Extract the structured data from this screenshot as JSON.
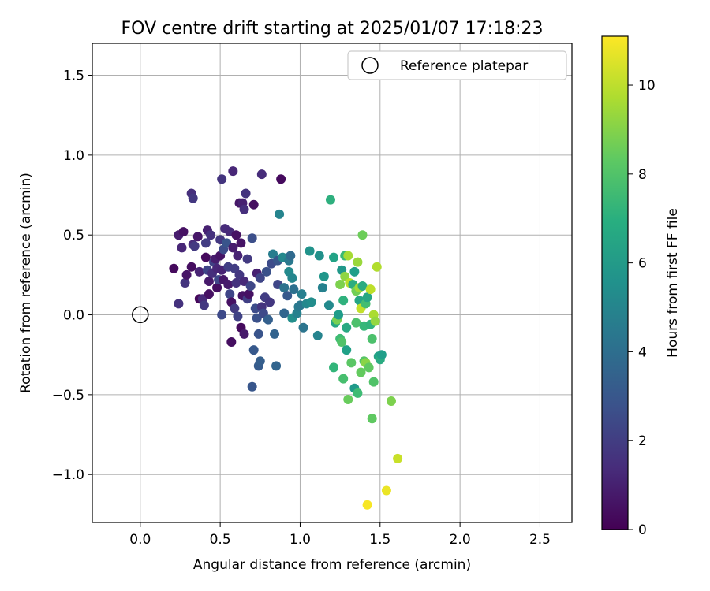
{
  "chart_data": {
    "type": "scatter",
    "title": "FOV centre drift starting at 2025/01/07 17:18:23",
    "xlabel": "Angular distance from reference (arcmin)",
    "ylabel": "Rotation from reference (arcmin)",
    "xlim": [
      -0.3,
      2.7
    ],
    "ylim": [
      -1.3,
      1.7
    ],
    "xticks": [
      0.0,
      0.5,
      1.0,
      1.5,
      2.0,
      2.5
    ],
    "xtick_labels": [
      "0.0",
      "0.5",
      "1.0",
      "1.5",
      "2.0",
      "2.5"
    ],
    "yticks": [
      -1.0,
      -0.5,
      0.0,
      0.5,
      1.0,
      1.5
    ],
    "ytick_labels": [
      "−1.0",
      "−0.5",
      "0.0",
      "0.5",
      "1.0",
      "1.5"
    ],
    "grid": true,
    "legend": {
      "location": "top-right",
      "entries": [
        "Reference platepar"
      ]
    },
    "reference_point": {
      "x": 0.0,
      "y": 0.0
    },
    "colorbar": {
      "label": "Hours from first FF file",
      "colormap": "viridis",
      "range": [
        0,
        11.1
      ],
      "ticks": [
        0,
        2,
        4,
        6,
        8,
        10
      ],
      "tick_labels": [
        "0",
        "2",
        "4",
        "6",
        "8",
        "10"
      ]
    },
    "points": [
      {
        "x": 0.21,
        "y": 0.29,
        "h": 0.3
      },
      {
        "x": 0.24,
        "y": 0.5,
        "h": 0.9
      },
      {
        "x": 0.24,
        "y": 0.07,
        "h": 1.6
      },
      {
        "x": 0.27,
        "y": 0.52,
        "h": 0.5
      },
      {
        "x": 0.26,
        "y": 0.42,
        "h": 1.2
      },
      {
        "x": 0.28,
        "y": 0.2,
        "h": 1.7
      },
      {
        "x": 0.29,
        "y": 0.25,
        "h": 0.6
      },
      {
        "x": 0.32,
        "y": 0.76,
        "h": 1.5
      },
      {
        "x": 0.33,
        "y": 0.73,
        "h": 1.8
      },
      {
        "x": 0.32,
        "y": 0.3,
        "h": 0.4
      },
      {
        "x": 0.33,
        "y": 0.44,
        "h": 1.4
      },
      {
        "x": 0.34,
        "y": 0.43,
        "h": 1.9
      },
      {
        "x": 0.36,
        "y": 0.49,
        "h": 0.7
      },
      {
        "x": 0.37,
        "y": 0.27,
        "h": 1.1
      },
      {
        "x": 0.37,
        "y": 0.1,
        "h": 0.2
      },
      {
        "x": 0.39,
        "y": 0.1,
        "h": 1.3
      },
      {
        "x": 0.4,
        "y": 0.06,
        "h": 1.8
      },
      {
        "x": 0.41,
        "y": 0.45,
        "h": 2.0
      },
      {
        "x": 0.41,
        "y": 0.36,
        "h": 0.3
      },
      {
        "x": 0.42,
        "y": 0.53,
        "h": 1.0
      },
      {
        "x": 0.42,
        "y": 0.28,
        "h": 2.3
      },
      {
        "x": 0.43,
        "y": 0.21,
        "h": 0.8
      },
      {
        "x": 0.43,
        "y": 0.13,
        "h": 0.5
      },
      {
        "x": 0.44,
        "y": 0.5,
        "h": 1.6
      },
      {
        "x": 0.45,
        "y": 0.26,
        "h": 1.5
      },
      {
        "x": 0.46,
        "y": 0.33,
        "h": 2.2
      },
      {
        "x": 0.47,
        "y": 0.35,
        "h": 0.9
      },
      {
        "x": 0.48,
        "y": 0.29,
        "h": 1.2
      },
      {
        "x": 0.48,
        "y": 0.17,
        "h": 0.4
      },
      {
        "x": 0.49,
        "y": 0.22,
        "h": 2.4
      },
      {
        "x": 0.5,
        "y": 0.47,
        "h": 1.8
      },
      {
        "x": 0.5,
        "y": 0.37,
        "h": 0.6
      },
      {
        "x": 0.51,
        "y": 0.85,
        "h": 1.7
      },
      {
        "x": 0.51,
        "y": 0.28,
        "h": 1.1
      },
      {
        "x": 0.51,
        "y": 0.0,
        "h": 2.5
      },
      {
        "x": 0.52,
        "y": 0.41,
        "h": 2.6
      },
      {
        "x": 0.52,
        "y": 0.22,
        "h": 0.7
      },
      {
        "x": 0.53,
        "y": 0.54,
        "h": 1.4
      },
      {
        "x": 0.54,
        "y": 0.45,
        "h": 2.9
      },
      {
        "x": 0.55,
        "y": 0.3,
        "h": 2.1
      },
      {
        "x": 0.55,
        "y": 0.19,
        "h": 0.8
      },
      {
        "x": 0.56,
        "y": 0.52,
        "h": 1.3
      },
      {
        "x": 0.56,
        "y": 0.13,
        "h": 2.3
      },
      {
        "x": 0.57,
        "y": 0.08,
        "h": 0.5
      },
      {
        "x": 0.57,
        "y": -0.17,
        "h": 0.4
      },
      {
        "x": 0.58,
        "y": 0.9,
        "h": 1.2
      },
      {
        "x": 0.58,
        "y": 0.42,
        "h": 0.9
      },
      {
        "x": 0.59,
        "y": 0.29,
        "h": 2.0
      },
      {
        "x": 0.59,
        "y": 0.04,
        "h": 1.9
      },
      {
        "x": 0.6,
        "y": 0.5,
        "h": 0.5
      },
      {
        "x": 0.6,
        "y": 0.2,
        "h": 1.6
      },
      {
        "x": 0.61,
        "y": 0.37,
        "h": 1.1
      },
      {
        "x": 0.61,
        "y": -0.01,
        "h": 2.2
      },
      {
        "x": 0.62,
        "y": 0.25,
        "h": 1.8
      },
      {
        "x": 0.62,
        "y": 0.7,
        "h": 0.7
      },
      {
        "x": 0.63,
        "y": 0.45,
        "h": 0.6
      },
      {
        "x": 0.63,
        "y": -0.08,
        "h": 0.3
      },
      {
        "x": 0.64,
        "y": 0.7,
        "h": 1.0
      },
      {
        "x": 0.64,
        "y": 0.12,
        "h": 0.6
      },
      {
        "x": 0.65,
        "y": 0.66,
        "h": 1.5
      },
      {
        "x": 0.65,
        "y": 0.21,
        "h": 1.3
      },
      {
        "x": 0.65,
        "y": -0.12,
        "h": 0.8
      },
      {
        "x": 0.66,
        "y": 0.76,
        "h": 1.7
      },
      {
        "x": 0.67,
        "y": 0.35,
        "h": 1.9
      },
      {
        "x": 0.67,
        "y": 0.1,
        "h": 2.1
      },
      {
        "x": 0.68,
        "y": 0.13,
        "h": 0.5
      },
      {
        "x": 0.69,
        "y": 0.18,
        "h": 2.4
      },
      {
        "x": 0.7,
        "y": 0.48,
        "h": 2.7
      },
      {
        "x": 0.7,
        "y": -0.45,
        "h": 3.0
      },
      {
        "x": 0.71,
        "y": 0.69,
        "h": 0.4
      },
      {
        "x": 0.71,
        "y": -0.22,
        "h": 3.1
      },
      {
        "x": 0.72,
        "y": 0.04,
        "h": 2.6
      },
      {
        "x": 0.73,
        "y": 0.26,
        "h": 1.0
      },
      {
        "x": 0.73,
        "y": -0.02,
        "h": 2.8
      },
      {
        "x": 0.74,
        "y": -0.32,
        "h": 3.2
      },
      {
        "x": 0.74,
        "y": -0.12,
        "h": 2.9
      },
      {
        "x": 0.75,
        "y": -0.29,
        "h": 3.3
      },
      {
        "x": 0.75,
        "y": 0.23,
        "h": 2.3
      },
      {
        "x": 0.76,
        "y": 0.88,
        "h": 1.4
      },
      {
        "x": 0.76,
        "y": 0.05,
        "h": 1.7
      },
      {
        "x": 0.77,
        "y": 0.01,
        "h": 2.5
      },
      {
        "x": 0.78,
        "y": 0.11,
        "h": 2.0
      },
      {
        "x": 0.79,
        "y": 0.27,
        "h": 2.8
      },
      {
        "x": 0.8,
        "y": -0.03,
        "h": 3.4
      },
      {
        "x": 0.81,
        "y": 0.08,
        "h": 1.8
      },
      {
        "x": 0.82,
        "y": 0.32,
        "h": 2.6
      },
      {
        "x": 0.83,
        "y": 0.38,
        "h": 4.7
      },
      {
        "x": 0.84,
        "y": -0.12,
        "h": 3.5
      },
      {
        "x": 0.85,
        "y": -0.32,
        "h": 3.6
      },
      {
        "x": 0.86,
        "y": 0.19,
        "h": 2.4
      },
      {
        "x": 0.86,
        "y": 0.34,
        "h": 3.0
      },
      {
        "x": 0.87,
        "y": 0.63,
        "h": 5.0
      },
      {
        "x": 0.88,
        "y": 0.85,
        "h": 0.3
      },
      {
        "x": 0.89,
        "y": 0.36,
        "h": 5.2
      },
      {
        "x": 0.9,
        "y": 0.17,
        "h": 4.2
      },
      {
        "x": 0.9,
        "y": 0.01,
        "h": 3.6
      },
      {
        "x": 0.92,
        "y": 0.12,
        "h": 3.1
      },
      {
        "x": 0.93,
        "y": 0.34,
        "h": 4.5
      },
      {
        "x": 0.93,
        "y": 0.27,
        "h": 5.3
      },
      {
        "x": 0.94,
        "y": 0.37,
        "h": 3.8
      },
      {
        "x": 0.95,
        "y": 0.23,
        "h": 5.1
      },
      {
        "x": 0.95,
        "y": -0.02,
        "h": 5.5
      },
      {
        "x": 0.96,
        "y": 0.16,
        "h": 4.1
      },
      {
        "x": 0.98,
        "y": 0.01,
        "h": 4.9
      },
      {
        "x": 0.99,
        "y": 0.05,
        "h": 4.6
      },
      {
        "x": 1.0,
        "y": 0.06,
        "h": 4.4
      },
      {
        "x": 1.01,
        "y": 0.13,
        "h": 4.8
      },
      {
        "x": 1.02,
        "y": -0.08,
        "h": 4.3
      },
      {
        "x": 1.04,
        "y": 0.07,
        "h": 5.2
      },
      {
        "x": 1.06,
        "y": 0.4,
        "h": 5.7
      },
      {
        "x": 1.07,
        "y": 0.08,
        "h": 5.4
      },
      {
        "x": 1.11,
        "y": -0.13,
        "h": 5.0
      },
      {
        "x": 1.12,
        "y": 0.37,
        "h": 5.6
      },
      {
        "x": 1.14,
        "y": 0.17,
        "h": 4.9
      },
      {
        "x": 1.15,
        "y": 0.24,
        "h": 5.8
      },
      {
        "x": 1.18,
        "y": 0.06,
        "h": 5.3
      },
      {
        "x": 1.19,
        "y": 0.72,
        "h": 7.0
      },
      {
        "x": 1.21,
        "y": 0.36,
        "h": 6.4
      },
      {
        "x": 1.21,
        "y": -0.33,
        "h": 7.3
      },
      {
        "x": 1.22,
        "y": -0.05,
        "h": 6.6
      },
      {
        "x": 1.23,
        "y": -0.03,
        "h": 8.8
      },
      {
        "x": 1.24,
        "y": 0.0,
        "h": 6.1
      },
      {
        "x": 1.25,
        "y": -0.15,
        "h": 7.6
      },
      {
        "x": 1.25,
        "y": 0.19,
        "h": 8.9
      },
      {
        "x": 1.26,
        "y": 0.28,
        "h": 5.9
      },
      {
        "x": 1.26,
        "y": -0.17,
        "h": 8.0
      },
      {
        "x": 1.27,
        "y": 0.09,
        "h": 7.1
      },
      {
        "x": 1.27,
        "y": -0.4,
        "h": 7.8
      },
      {
        "x": 1.28,
        "y": 0.24,
        "h": 9.2
      },
      {
        "x": 1.28,
        "y": 0.37,
        "h": 7.5
      },
      {
        "x": 1.29,
        "y": -0.08,
        "h": 6.7
      },
      {
        "x": 1.29,
        "y": -0.22,
        "h": 6.3
      },
      {
        "x": 1.3,
        "y": 0.37,
        "h": 9.6
      },
      {
        "x": 1.3,
        "y": -0.53,
        "h": 8.5
      },
      {
        "x": 1.31,
        "y": 0.2,
        "h": 9.9
      },
      {
        "x": 1.32,
        "y": -0.3,
        "h": 8.2
      },
      {
        "x": 1.33,
        "y": 0.19,
        "h": 6.9
      },
      {
        "x": 1.34,
        "y": -0.46,
        "h": 6.0
      },
      {
        "x": 1.34,
        "y": 0.27,
        "h": 6.2
      },
      {
        "x": 1.35,
        "y": 0.15,
        "h": 8.7
      },
      {
        "x": 1.35,
        "y": -0.05,
        "h": 7.9
      },
      {
        "x": 1.36,
        "y": 0.33,
        "h": 9.4
      },
      {
        "x": 1.36,
        "y": -0.49,
        "h": 7.6
      },
      {
        "x": 1.37,
        "y": 0.09,
        "h": 6.5
      },
      {
        "x": 1.37,
        "y": 0.17,
        "h": 9.5
      },
      {
        "x": 1.38,
        "y": 0.04,
        "h": 10.1
      },
      {
        "x": 1.38,
        "y": -0.36,
        "h": 8.4
      },
      {
        "x": 1.39,
        "y": 0.5,
        "h": 8.6
      },
      {
        "x": 1.39,
        "y": 0.18,
        "h": 6.8
      },
      {
        "x": 1.4,
        "y": -0.07,
        "h": 7.4
      },
      {
        "x": 1.4,
        "y": -0.29,
        "h": 8.1
      },
      {
        "x": 1.41,
        "y": 0.07,
        "h": 7.7
      },
      {
        "x": 1.41,
        "y": -0.3,
        "h": 9.1
      },
      {
        "x": 1.42,
        "y": -1.19,
        "h": 11.0
      },
      {
        "x": 1.42,
        "y": 0.11,
        "h": 6.6
      },
      {
        "x": 1.43,
        "y": -0.33,
        "h": 8.3
      },
      {
        "x": 1.44,
        "y": -0.06,
        "h": 7.2
      },
      {
        "x": 1.44,
        "y": 0.16,
        "h": 10.0
      },
      {
        "x": 1.45,
        "y": -0.15,
        "h": 7.9
      },
      {
        "x": 1.45,
        "y": -0.65,
        "h": 8.3
      },
      {
        "x": 1.46,
        "y": -0.42,
        "h": 8.0
      },
      {
        "x": 1.46,
        "y": 0.0,
        "h": 9.7
      },
      {
        "x": 1.47,
        "y": -0.04,
        "h": 9.3
      },
      {
        "x": 1.48,
        "y": 0.3,
        "h": 9.8
      },
      {
        "x": 1.49,
        "y": -0.26,
        "h": 6.4
      },
      {
        "x": 1.5,
        "y": -0.28,
        "h": 6.8
      },
      {
        "x": 1.51,
        "y": -0.25,
        "h": 6.2
      },
      {
        "x": 1.54,
        "y": -1.1,
        "h": 10.8
      },
      {
        "x": 1.57,
        "y": -0.54,
        "h": 8.9
      },
      {
        "x": 1.61,
        "y": -0.9,
        "h": 10.2
      }
    ]
  }
}
